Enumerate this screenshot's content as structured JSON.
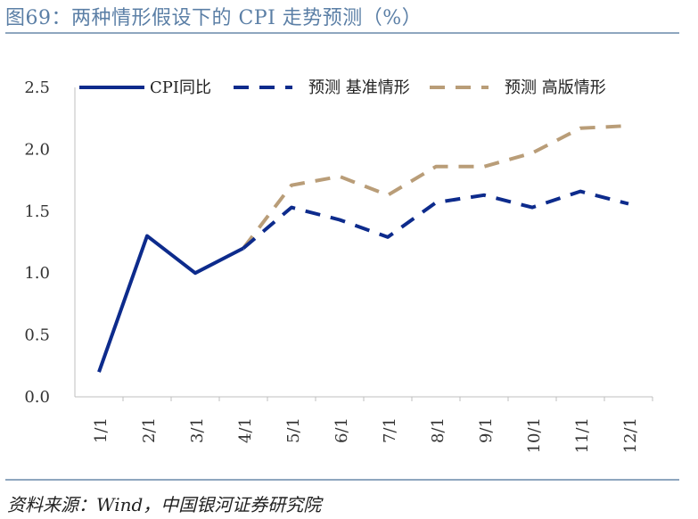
{
  "title": "图69：两种情形假设下的 CPI 走势预测（%）",
  "source": "资料来源：Wind，中国银河证券研究院",
  "colors": {
    "actual": "#0d2b8c",
    "base": "#0d2b8c",
    "high": "#b99d78"
  },
  "chart_data": {
    "type": "line",
    "categories": [
      "1/1",
      "2/1",
      "3/1",
      "4/1",
      "5/1",
      "6/1",
      "7/1",
      "8/1",
      "9/1",
      "10/1",
      "11/1",
      "12/1"
    ],
    "ylim": [
      0,
      2.5
    ],
    "yticks": [
      "0.0",
      "0.5",
      "1.0",
      "1.5",
      "2.0",
      "2.5"
    ],
    "legend_position": "top",
    "grid": false,
    "series": [
      {
        "name": "CPI同比",
        "style": "solid",
        "values": [
          0.2,
          1.3,
          1.0,
          1.2,
          null,
          null,
          null,
          null,
          null,
          null,
          null,
          null
        ]
      },
      {
        "name": "预测 基准情形",
        "style": "dashed",
        "values": [
          null,
          null,
          null,
          1.2,
          1.53,
          1.43,
          1.29,
          1.57,
          1.63,
          1.53,
          1.66,
          1.56
        ]
      },
      {
        "name": "预测 高版情形",
        "style": "dashed",
        "values": [
          null,
          null,
          null,
          1.2,
          1.71,
          1.78,
          1.63,
          1.86,
          1.86,
          1.97,
          2.17,
          2.19
        ]
      }
    ]
  }
}
